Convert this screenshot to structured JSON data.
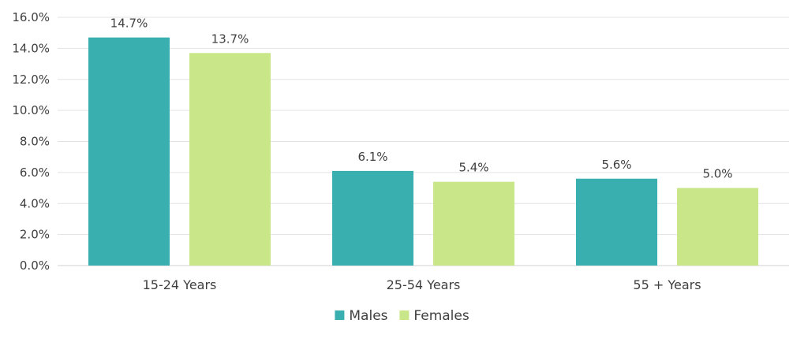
{
  "chart_data": {
    "type": "bar",
    "categories": [
      "15-24 Years",
      "25-54 Years",
      "55 + Years"
    ],
    "series": [
      {
        "name": "Males",
        "values": [
          14.7,
          6.1,
          5.6
        ],
        "color": "#3aafb0"
      },
      {
        "name": "Females",
        "values": [
          13.7,
          5.4,
          5.0
        ],
        "color": "#c9e689"
      }
    ],
    "data_labels": [
      [
        "14.7%",
        "6.1%",
        "5.6%"
      ],
      [
        "13.7%",
        "5.4%",
        "5.0%"
      ]
    ],
    "y_ticks": [
      "0.0%",
      "2.0%",
      "4.0%",
      "6.0%",
      "8.0%",
      "10.0%",
      "12.0%",
      "14.0%",
      "16.0%"
    ],
    "ylim": [
      0,
      16
    ],
    "title": "",
    "xlabel": "",
    "ylabel": "",
    "grid": true,
    "legend_position": "bottom"
  }
}
